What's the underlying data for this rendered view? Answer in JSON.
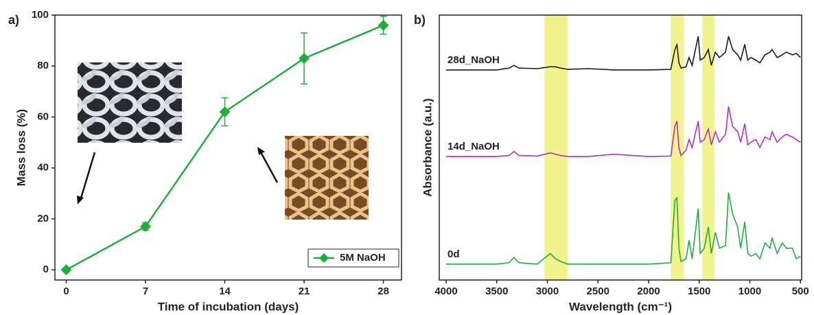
{
  "chart_data": [
    {
      "type": "line",
      "label": "a)",
      "x_label": "Time of incubation (days)",
      "y_label": "Mass loss (%)",
      "x": [
        0,
        7,
        14,
        21,
        28
      ],
      "series": [
        {
          "name": "5M NaOH",
          "color": "#1fae3c",
          "values": [
            0,
            17,
            62,
            83,
            96
          ],
          "errors": [
            0.5,
            1.5,
            5.5,
            10,
            3.5
          ]
        }
      ],
      "xlim": [
        -1,
        29.6
      ],
      "xticks": [
        0,
        7,
        14,
        21,
        28
      ],
      "ylim": [
        -4,
        100
      ],
      "yticks": [
        0,
        20,
        40,
        60,
        80,
        100
      ],
      "legend": "lower right"
    },
    {
      "type": "line",
      "label": "b)",
      "x_label": "Wavelength (cm⁻¹)",
      "y_label": "Absorbance (a.u.)",
      "x": [
        4000,
        3500,
        3380,
        3330,
        3280,
        3100,
        2970,
        2920,
        2870,
        2800,
        2600,
        2350,
        2000,
        1780,
        1740,
        1720,
        1700,
        1680,
        1630,
        1600,
        1570,
        1510,
        1490,
        1450,
        1410,
        1380,
        1340,
        1300,
        1240,
        1210,
        1170,
        1120,
        1090,
        1050,
        1020,
        990,
        940,
        900,
        850,
        800,
        780,
        730,
        680,
        640,
        580,
        540,
        500
      ],
      "series": [
        {
          "name": "28d_NaOH",
          "color": "#1a1a1a",
          "values": [
            79.3,
            79.3,
            80,
            81,
            80,
            79.8,
            80.5,
            80.5,
            80,
            79.5,
            79.8,
            79.3,
            79.3,
            79.5,
            87,
            88.8,
            82,
            80,
            80.5,
            84,
            81,
            92,
            83,
            84,
            87,
            81,
            86,
            84,
            86,
            92,
            87,
            85,
            83,
            89,
            83,
            84,
            83,
            82,
            85,
            86,
            87,
            84,
            85,
            86,
            85,
            85.5,
            84
          ]
        },
        {
          "name": "14d_NaOH",
          "color": "#b02ec4",
          "values": [
            46.6,
            46.6,
            47,
            48.5,
            47,
            46.8,
            48,
            47.5,
            47,
            46.6,
            46.6,
            47.5,
            46.6,
            46.8,
            58,
            60,
            50,
            47,
            49,
            53,
            50,
            60,
            52,
            53,
            57,
            51,
            56,
            52,
            55,
            65.5,
            58,
            56,
            52,
            59,
            51,
            52,
            53,
            50,
            54,
            53,
            56,
            52,
            54,
            55,
            54,
            53,
            52
          ]
        },
        {
          "name": "0d",
          "color": "#1fae3c",
          "values": [
            6,
            6,
            6.5,
            8.5,
            6.5,
            6,
            10,
            8,
            7,
            6,
            6,
            6,
            6,
            6.5,
            30,
            31,
            12,
            7,
            8,
            15,
            8,
            27,
            10,
            12,
            20,
            10,
            18,
            12,
            13,
            33,
            25,
            20,
            12,
            22,
            10,
            9,
            10,
            8,
            14,
            12,
            16,
            10,
            14,
            12,
            12,
            8,
            9
          ]
        }
      ],
      "highlights": [
        [
          3030,
          2800
        ],
        [
          1780,
          1650
        ],
        [
          1470,
          1350
        ]
      ],
      "xlim": [
        4068,
        488
      ],
      "xticks": [
        4000,
        3500,
        3000,
        2500,
        2000,
        1500,
        1000,
        500
      ],
      "ylim": [
        0,
        100
      ],
      "legend": "inline"
    }
  ]
}
